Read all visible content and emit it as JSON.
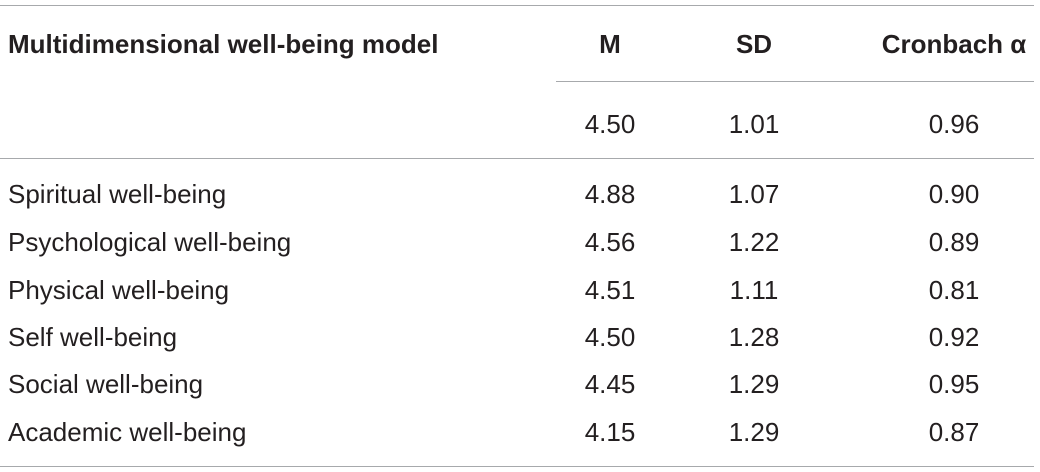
{
  "table": {
    "headers": {
      "label": "Multidimensional well-being model",
      "m": "M",
      "sd": "SD",
      "alpha": "Cronbach α"
    },
    "overall": {
      "m": "4.50",
      "sd": "1.01",
      "alpha": "0.96"
    },
    "rows": [
      {
        "label": "Spiritual well-being",
        "m": "4.88",
        "sd": "1.07",
        "alpha": "0.90"
      },
      {
        "label": "Psychological well-being",
        "m": "4.56",
        "sd": "1.22",
        "alpha": "0.89"
      },
      {
        "label": "Physical well-being",
        "m": "4.51",
        "sd": "1.11",
        "alpha": "0.81"
      },
      {
        "label": "Self well-being",
        "m": "4.50",
        "sd": "1.28",
        "alpha": "0.92"
      },
      {
        "label": "Social well-being",
        "m": "4.45",
        "sd": "1.29",
        "alpha": "0.95"
      },
      {
        "label": "Academic well-being",
        "m": "4.15",
        "sd": "1.29",
        "alpha": "0.87"
      }
    ]
  }
}
